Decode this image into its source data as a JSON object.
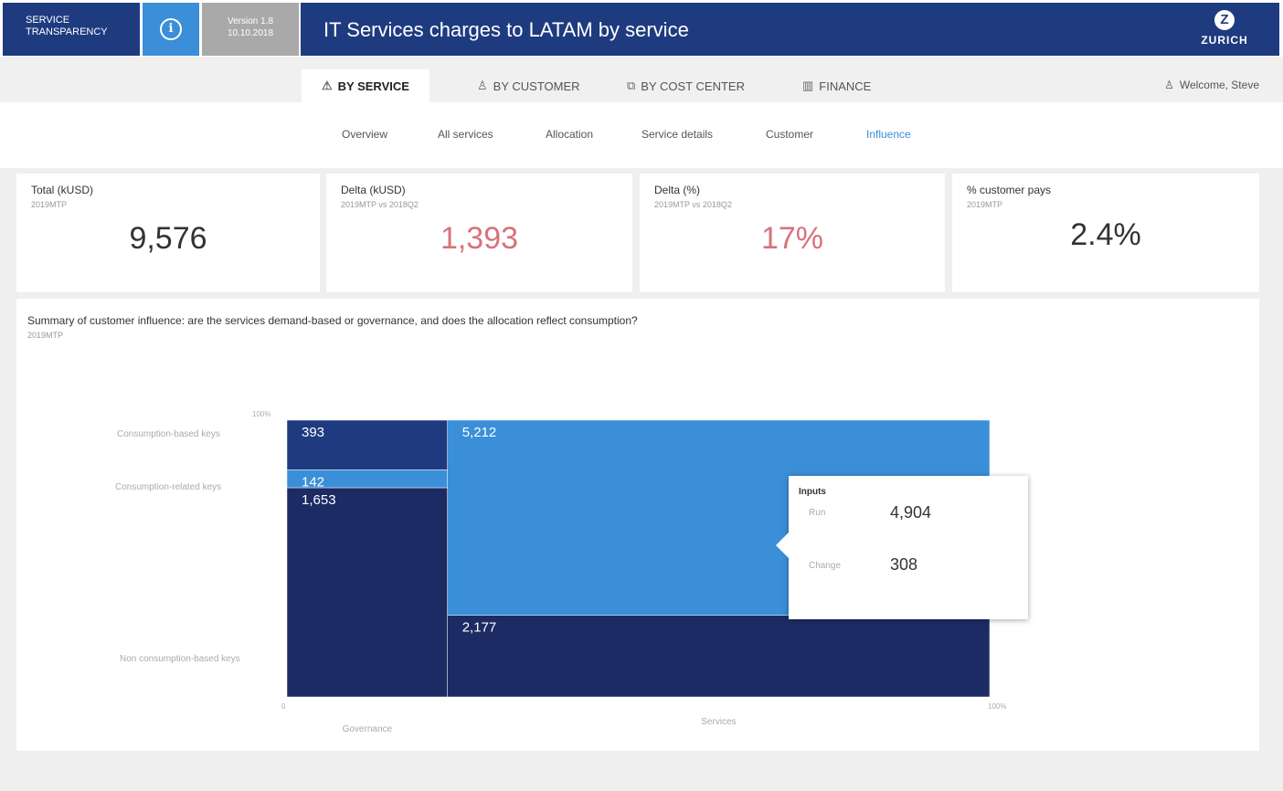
{
  "header": {
    "brand_line1": "SERVICE",
    "brand_line2": "TRANSPARENCY",
    "version_line1": "Version 1.8",
    "version_line2": "10.10.2018",
    "title": "IT Services charges to LATAM by service",
    "logo_text": "ZURICH",
    "logo_mark": "Z"
  },
  "main_nav": {
    "tabs": [
      {
        "label": "BY SERVICE",
        "icon": "warning-triangle-icon",
        "glyph": "⚠"
      },
      {
        "label": "BY CUSTOMER",
        "icon": "person-icon",
        "glyph": "♙"
      },
      {
        "label": "BY COST CENTER",
        "icon": "org-chart-icon",
        "glyph": "⧉"
      },
      {
        "label": "FINANCE",
        "icon": "document-icon",
        "glyph": "▥"
      }
    ],
    "welcome": "Welcome, Steve",
    "welcome_glyph": "♙"
  },
  "sub_nav": {
    "items": [
      "Overview",
      "All services",
      "Allocation",
      "Service details",
      "Customer",
      "Influence"
    ],
    "active": "Influence"
  },
  "kpis": [
    {
      "label": "Total (kUSD)",
      "sub": "2019MTP",
      "value": "9,576"
    },
    {
      "label": "Delta (kUSD)",
      "sub": "2019MTP vs 2018Q2",
      "value": "1,393"
    },
    {
      "label": "Delta (%)",
      "sub": "2019MTP vs 2018Q2",
      "value": "17%"
    },
    {
      "label": "% customer pays",
      "sub": "2019MTP",
      "value": "2.4%"
    }
  ],
  "chart_title": "Summary of customer influence: are the services demand-based or governance, and does the allocation reflect consumption?",
  "chart_subtitle": "2019MTP",
  "chart_data": {
    "type": "mekko",
    "y_axis_top": "100%",
    "x_axis_start": "0",
    "x_axis_end": "100%",
    "row_labels": [
      "Consumption-based keys",
      "Consumption-related keys",
      "Non consumption-based keys"
    ],
    "columns": [
      {
        "name": "Governance",
        "segments": [
          {
            "row": "Consumption-based keys",
            "value": 393
          },
          {
            "row": "Consumption-related keys",
            "value": 142
          },
          {
            "row": "Non consumption-based keys",
            "value": 1653
          }
        ]
      },
      {
        "name": "Services",
        "segments": [
          {
            "row": "Consumption-related keys",
            "value": 5212
          },
          {
            "row": "Non consumption-based keys",
            "value": 2177
          }
        ]
      }
    ],
    "colors": {
      "consumption_based": "#1f3b80",
      "consumption_related": "#3a8fd8",
      "non_consumption": "#1c2b63"
    }
  },
  "tooltip": {
    "title": "Inputs",
    "rows": [
      {
        "label": "Run",
        "value": "4,904"
      },
      {
        "label": "Change",
        "value": "308"
      }
    ]
  },
  "colors": {
    "navy": "#1f3b80",
    "accent": "#3a8fd8",
    "negative": "#d8727a"
  }
}
